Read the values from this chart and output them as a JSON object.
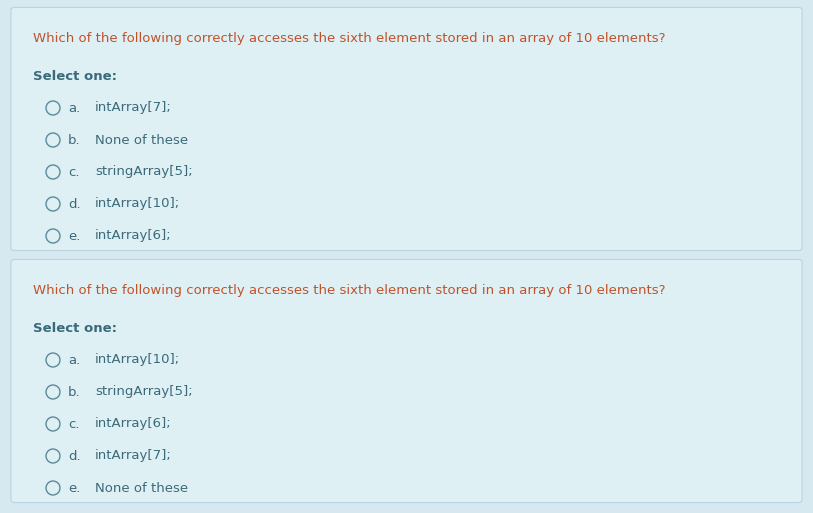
{
  "bg_color": "#d6e9f0",
  "panel_bg": "#dff0f5",
  "panel_edge": "#b8d4de",
  "title_color": "#c0522a",
  "select_color": "#3a6a7a",
  "option_letter_color": "#3a6a7a",
  "option_text_color": "#3a6a7a",
  "circle_color": "#5a8a9a",
  "question": "Which of the following correctly accesses the sixth element stored in an array of 10 elements?",
  "select_label": "Select one:",
  "panel1_options": [
    {
      "letter": "a.",
      "text": "intArray[7];"
    },
    {
      "letter": "b.",
      "text": "None of these"
    },
    {
      "letter": "c.",
      "text": "stringArray[5];"
    },
    {
      "letter": "d.",
      "text": "intArray[10];"
    },
    {
      "letter": "e.",
      "text": "intArray[6];"
    }
  ],
  "panel2_options": [
    {
      "letter": "a.",
      "text": "intArray[10];"
    },
    {
      "letter": "b.",
      "text": "stringArray[5];"
    },
    {
      "letter": "c.",
      "text": "intArray[6];"
    },
    {
      "letter": "d.",
      "text": "intArray[7];"
    },
    {
      "letter": "e.",
      "text": "None of these"
    }
  ]
}
